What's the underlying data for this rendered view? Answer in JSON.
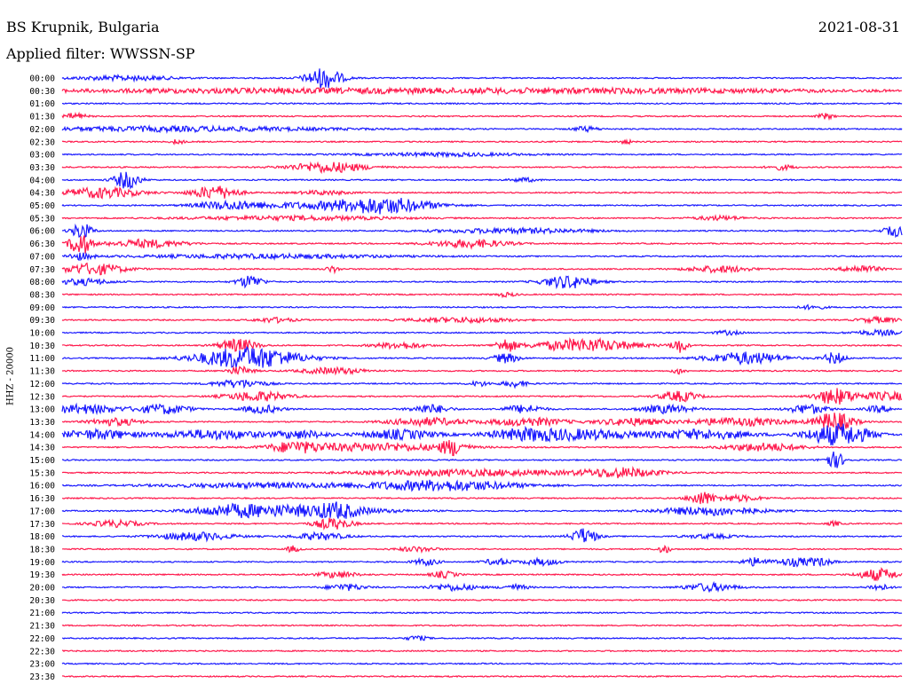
{
  "header": {
    "station": "BS Krupnik, Bulgaria",
    "date": "2021-08-31",
    "filter": "Applied filter: WWSSN-SP"
  },
  "chart_data": {
    "type": "line",
    "title": "BS Krupnik, Bulgaria",
    "subtitle": "Applied filter: WWSSN-SP",
    "ylabel": "HHZ - 20000",
    "grid": false,
    "series_colors": [
      "#1a1aff",
      "#ff1a4d"
    ],
    "rows": [
      {
        "label": "00:00",
        "events": [
          [
            365,
            2.6,
            14
          ],
          [
            140,
            0.6,
            40
          ]
        ]
      },
      {
        "label": "00:30",
        "events": [
          [
            300,
            0.5,
            200
          ],
          [
            700,
            0.5,
            200
          ]
        ]
      },
      {
        "label": "01:00",
        "events": []
      },
      {
        "label": "01:30",
        "events": [
          [
            85,
            0.8,
            8
          ],
          [
            930,
            0.7,
            6
          ]
        ]
      },
      {
        "label": "02:00",
        "events": [
          [
            200,
            0.6,
            120
          ],
          [
            660,
            0.6,
            10
          ]
        ]
      },
      {
        "label": "02:30",
        "events": [
          [
            200,
            0.6,
            5
          ],
          [
            705,
            0.5,
            5
          ]
        ]
      },
      {
        "label": "03:00",
        "events": [
          [
            500,
            0.4,
            60
          ]
        ]
      },
      {
        "label": "03:30",
        "events": [
          [
            370,
            1.3,
            30
          ],
          [
            880,
            0.6,
            10
          ]
        ]
      },
      {
        "label": "04:00",
        "events": [
          [
            143,
            2.2,
            10
          ],
          [
            590,
            0.5,
            10
          ]
        ]
      },
      {
        "label": "04:30",
        "events": [
          [
            115,
            1.3,
            30
          ],
          [
            242,
            1.7,
            18
          ],
          [
            365,
            0.5,
            20
          ]
        ]
      },
      {
        "label": "05:00",
        "events": [
          [
            255,
            0.9,
            25
          ],
          [
            430,
            2.0,
            40
          ],
          [
            330,
            0.6,
            50
          ]
        ]
      },
      {
        "label": "05:30",
        "events": [
          [
            330,
            0.5,
            80
          ],
          [
            810,
            0.5,
            20
          ]
        ]
      },
      {
        "label": "06:00",
        "events": [
          [
            92,
            2.0,
            8
          ],
          [
            1010,
            1.3,
            10
          ],
          [
            580,
            0.6,
            60
          ]
        ]
      },
      {
        "label": "06:30",
        "events": [
          [
            90,
            3.0,
            8
          ],
          [
            165,
            1.0,
            30
          ],
          [
            530,
            1.0,
            30
          ]
        ]
      },
      {
        "label": "07:00",
        "events": [
          [
            90,
            0.8,
            10
          ],
          [
            300,
            0.5,
            100
          ]
        ]
      },
      {
        "label": "07:30",
        "events": [
          [
            105,
            1.4,
            25
          ],
          [
            375,
            0.8,
            5
          ],
          [
            810,
            0.8,
            25
          ],
          [
            970,
            0.9,
            15
          ]
        ]
      },
      {
        "label": "08:00",
        "events": [
          [
            282,
            1.6,
            10
          ],
          [
            640,
            1.6,
            20
          ],
          [
            95,
            0.8,
            20
          ]
        ]
      },
      {
        "label": "08:30",
        "events": [
          [
            570,
            0.5,
            8
          ]
        ]
      },
      {
        "label": "09:00",
        "events": [
          [
            915,
            0.5,
            10
          ]
        ]
      },
      {
        "label": "09:30",
        "events": [
          [
            310,
            0.6,
            15
          ],
          [
            520,
            0.6,
            40
          ],
          [
            990,
            0.7,
            15
          ]
        ]
      },
      {
        "label": "10:00",
        "events": [
          [
            820,
            0.5,
            10
          ],
          [
            990,
            0.6,
            20
          ]
        ]
      },
      {
        "label": "10:30",
        "events": [
          [
            268,
            1.6,
            15
          ],
          [
            570,
            1.6,
            8
          ],
          [
            660,
            1.6,
            40
          ],
          [
            765,
            1.8,
            6
          ],
          [
            450,
            0.8,
            20
          ]
        ]
      },
      {
        "label": "11:00",
        "events": [
          [
            280,
            2.8,
            40
          ],
          [
            570,
            1.2,
            10
          ],
          [
            840,
            1.5,
            30
          ],
          [
            940,
            1.5,
            8
          ]
        ]
      },
      {
        "label": "11:30",
        "events": [
          [
            375,
            0.8,
            25
          ],
          [
            270,
            1.0,
            10
          ],
          [
            765,
            0.8,
            5
          ]
        ]
      },
      {
        "label": "12:00",
        "events": [
          [
            270,
            1.0,
            20
          ],
          [
            580,
            0.8,
            10
          ],
          [
            540,
            0.6,
            8
          ]
        ]
      },
      {
        "label": "12:30",
        "events": [
          [
            290,
            1.2,
            25
          ],
          [
            765,
            1.3,
            15
          ],
          [
            940,
            2.0,
            15
          ],
          [
            1000,
            1.0,
            25
          ]
        ]
      },
      {
        "label": "13:00",
        "events": [
          [
            95,
            1.1,
            30
          ],
          [
            185,
            1.2,
            20
          ],
          [
            295,
            1.0,
            15
          ],
          [
            485,
            1.1,
            15
          ],
          [
            590,
            1.0,
            15
          ],
          [
            750,
            1.0,
            20
          ],
          [
            910,
            1.2,
            15
          ],
          [
            990,
            0.8,
            10
          ]
        ]
      },
      {
        "label": "13:30",
        "events": [
          [
            130,
            0.9,
            20
          ],
          [
            480,
            1.0,
            30
          ],
          [
            595,
            1.0,
            30
          ],
          [
            710,
            0.9,
            25
          ],
          [
            830,
            1.0,
            40
          ],
          [
            940,
            2.4,
            15
          ]
        ]
      },
      {
        "label": "14:00",
        "events": [
          [
            110,
            1.2,
            30
          ],
          [
            240,
            1.2,
            40
          ],
          [
            340,
            1.0,
            20
          ],
          [
            450,
            1.2,
            30
          ],
          [
            590,
            1.4,
            30
          ],
          [
            660,
            1.2,
            40
          ],
          [
            790,
            1.2,
            40
          ],
          [
            945,
            2.8,
            25
          ]
        ]
      },
      {
        "label": "14:30",
        "events": [
          [
            332,
            1.2,
            20
          ],
          [
            420,
            1.0,
            60
          ],
          [
            510,
            1.8,
            10
          ],
          [
            860,
            1.0,
            30
          ]
        ]
      },
      {
        "label": "15:00",
        "events": [
          [
            940,
            2.0,
            8
          ]
        ]
      },
      {
        "label": "15:30",
        "events": [
          [
            530,
            0.8,
            80
          ],
          [
            700,
            1.2,
            30
          ]
        ]
      },
      {
        "label": "16:00",
        "events": [
          [
            500,
            1.3,
            60
          ],
          [
            300,
            0.6,
            80
          ]
        ]
      },
      {
        "label": "16:30",
        "events": [
          [
            790,
            1.6,
            10
          ],
          [
            830,
            0.7,
            20
          ]
        ]
      },
      {
        "label": "17:00",
        "events": [
          [
            260,
            1.1,
            30
          ],
          [
            340,
            1.3,
            60
          ],
          [
            380,
            1.2,
            15
          ],
          [
            800,
            1.1,
            40
          ]
        ]
      },
      {
        "label": "17:30",
        "events": [
          [
            130,
            0.8,
            20
          ],
          [
            375,
            1.4,
            15
          ],
          [
            940,
            0.6,
            5
          ]
        ]
      },
      {
        "label": "18:00",
        "events": [
          [
            220,
            1.0,
            30
          ],
          [
            360,
            0.9,
            20
          ],
          [
            658,
            2.0,
            10
          ],
          [
            800,
            0.5,
            20
          ]
        ]
      },
      {
        "label": "18:30",
        "events": [
          [
            330,
            0.8,
            5
          ],
          [
            470,
            0.6,
            15
          ],
          [
            748,
            1.0,
            5
          ]
        ]
      },
      {
        "label": "19:00",
        "events": [
          [
            480,
            0.8,
            10
          ],
          [
            560,
            0.8,
            10
          ],
          [
            610,
            0.8,
            15
          ],
          [
            850,
            1.0,
            10
          ],
          [
            895,
            1.0,
            15
          ],
          [
            925,
            0.8,
            10
          ]
        ]
      },
      {
        "label": "19:30",
        "events": [
          [
            380,
            0.8,
            15
          ],
          [
            500,
            0.8,
            10
          ],
          [
            990,
            1.5,
            15
          ]
        ]
      },
      {
        "label": "20:00",
        "events": [
          [
            390,
            0.8,
            15
          ],
          [
            510,
            0.8,
            20
          ],
          [
            580,
            0.7,
            10
          ],
          [
            800,
            1.0,
            20
          ],
          [
            990,
            0.8,
            8
          ]
        ]
      },
      {
        "label": "20:30",
        "events": []
      },
      {
        "label": "21:00",
        "events": []
      },
      {
        "label": "21:30",
        "events": []
      },
      {
        "label": "22:00",
        "events": [
          [
            470,
            0.6,
            8
          ]
        ]
      },
      {
        "label": "22:30",
        "events": []
      },
      {
        "label": "23:00",
        "events": []
      },
      {
        "label": "23:30",
        "events": []
      }
    ]
  }
}
